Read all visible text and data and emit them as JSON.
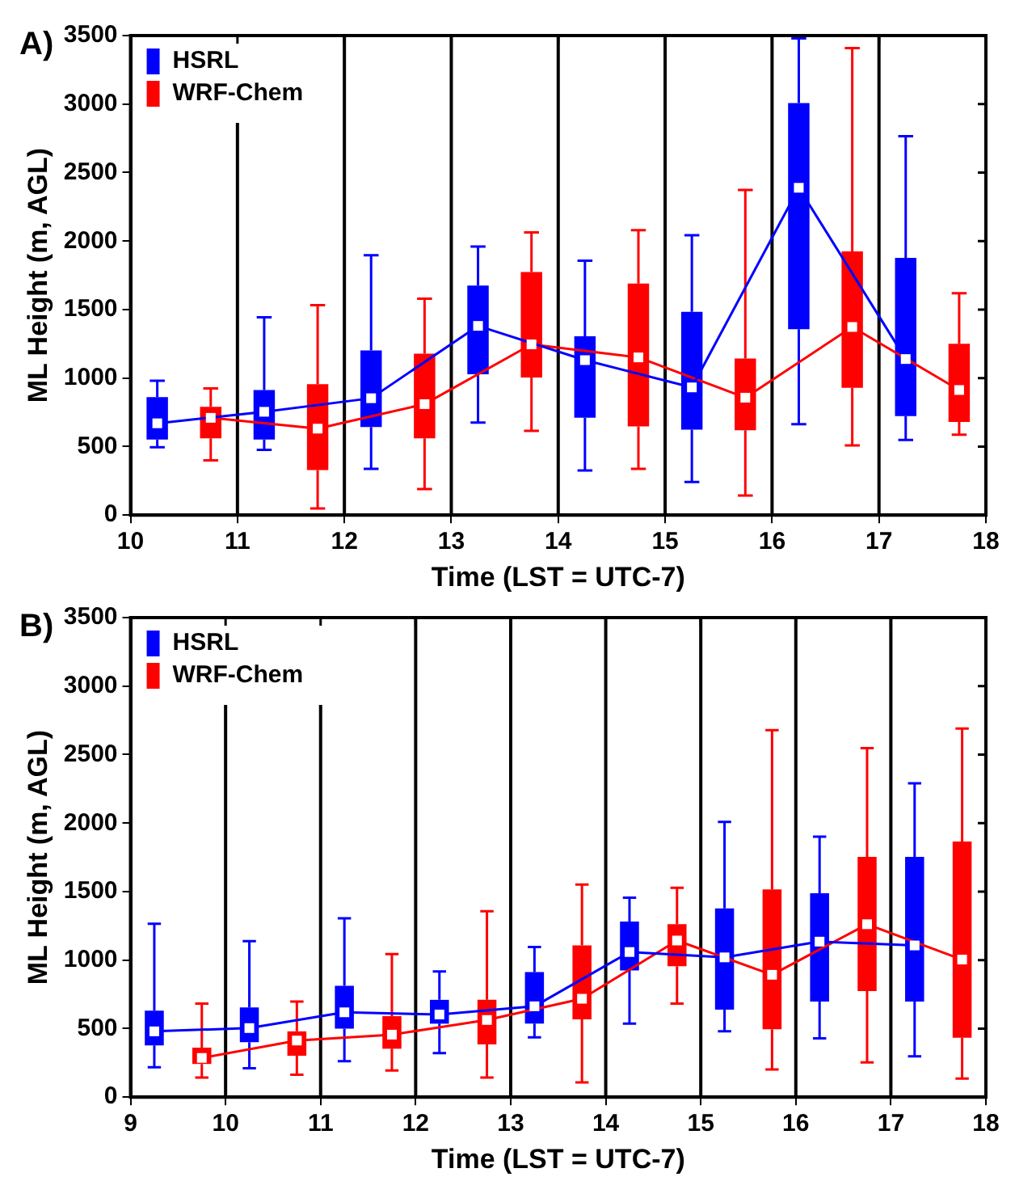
{
  "chart_data": [
    {
      "type": "box",
      "title": "A)",
      "xlabel": "Time (LST = UTC-7)",
      "ylabel": "ML Height (m, AGL)",
      "xlim": [
        10,
        18
      ],
      "xticks": [
        10,
        11,
        12,
        13,
        14,
        15,
        16,
        17,
        18
      ],
      "ylim": [
        0,
        3500
      ],
      "yticks": [
        0,
        500,
        1000,
        1500,
        2000,
        2500,
        3000,
        3500
      ],
      "grid": false,
      "legend": "top left",
      "ref_lines": [
        {
          "axis": "x",
          "value": 11,
          "color": "#000000"
        },
        {
          "axis": "x",
          "value": 12,
          "color": "#000000"
        },
        {
          "axis": "x",
          "value": 13,
          "color": "#000000"
        },
        {
          "axis": "x",
          "value": 14,
          "color": "#000000"
        },
        {
          "axis": "x",
          "value": 15,
          "color": "#000000"
        },
        {
          "axis": "x",
          "value": 16,
          "color": "#000000"
        },
        {
          "axis": "x",
          "value": 17,
          "color": "#000000"
        }
      ],
      "series": [
        {
          "name": "HSRL",
          "type": "box",
          "color": "#0000ff",
          "x": [
            10.25,
            11.25,
            12.25,
            13.25,
            14.25,
            15.25,
            16.25,
            17.25
          ],
          "boxes": [
            {
              "low": 496,
              "q1": 552,
              "median": 670,
              "q3": 861,
              "high": 980
            },
            {
              "low": 476,
              "q1": 552,
              "median": 754,
              "q3": 913,
              "high": 1444
            },
            {
              "low": 337,
              "q1": 643,
              "median": 853,
              "q3": 1202,
              "high": 1897
            },
            {
              "low": 675,
              "q1": 1028,
              "median": 1381,
              "q3": 1675,
              "high": 1960
            },
            {
              "low": 325,
              "q1": 710,
              "median": 1131,
              "q3": 1305,
              "high": 1857
            },
            {
              "low": 242,
              "q1": 623,
              "median": 932,
              "q3": 1484,
              "high": 2043
            },
            {
              "low": 663,
              "q1": 1357,
              "median": 2389,
              "q3": 3008,
              "high": 3480
            },
            {
              "low": 548,
              "q1": 722,
              "median": 1139,
              "q3": 1877,
              "high": 2766
            }
          ]
        },
        {
          "name": "WRF-Chem",
          "type": "box",
          "color": "#ff0000",
          "x": [
            10.75,
            11.75,
            12.75,
            13.75,
            14.75,
            15.75,
            16.75,
            17.75
          ],
          "boxes": [
            {
              "low": 400,
              "q1": 560,
              "median": 710,
              "q3": 790,
              "high": 925
            },
            {
              "low": 48,
              "q1": 329,
              "median": 631,
              "q3": 956,
              "high": 1532
            },
            {
              "low": 190,
              "q1": 560,
              "median": 810,
              "q3": 1178,
              "high": 1579
            },
            {
              "low": 615,
              "q1": 1004,
              "median": 1246,
              "q3": 1774,
              "high": 2063
            },
            {
              "low": 337,
              "q1": 647,
              "median": 1151,
              "q3": 1690,
              "high": 2079
            },
            {
              "low": 143,
              "q1": 619,
              "median": 857,
              "q3": 1143,
              "high": 2373
            },
            {
              "low": 508,
              "q1": 929,
              "median": 1373,
              "q3": 1924,
              "high": 3408
            },
            {
              "low": 587,
              "q1": 679,
              "median": 913,
              "q3": 1250,
              "high": 1619
            }
          ]
        },
        {
          "type": "line",
          "color": "#0000ff",
          "x": [
            10.25,
            11.25,
            12.25,
            13.25,
            14.25,
            15.25,
            16.25,
            17.25
          ],
          "values": [
            670,
            754,
            853,
            1381,
            1131,
            932,
            2389,
            1139
          ]
        },
        {
          "type": "line",
          "color": "#ff0000",
          "x": [
            10.75,
            11.75,
            12.75,
            13.75,
            14.75,
            15.75,
            16.75,
            17.75
          ],
          "values": [
            710,
            631,
            810,
            1246,
            1151,
            857,
            1373,
            913
          ]
        }
      ]
    },
    {
      "type": "box",
      "title": "B)",
      "xlabel": "Time (LST = UTC-7)",
      "ylabel": "ML Height (m, AGL)",
      "xlim": [
        9,
        18
      ],
      "xticks": [
        9,
        10,
        11,
        12,
        13,
        14,
        15,
        16,
        17,
        18
      ],
      "ylim": [
        0,
        3500
      ],
      "yticks": [
        0,
        500,
        1000,
        1500,
        2000,
        2500,
        3000,
        3500
      ],
      "grid": false,
      "legend": "top left",
      "ref_lines": [
        {
          "axis": "x",
          "value": 10,
          "color": "#000000"
        },
        {
          "axis": "x",
          "value": 11,
          "color": "#000000"
        },
        {
          "axis": "x",
          "value": 12,
          "color": "#000000"
        },
        {
          "axis": "x",
          "value": 13,
          "color": "#000000"
        },
        {
          "axis": "x",
          "value": 14,
          "color": "#000000"
        },
        {
          "axis": "x",
          "value": 15,
          "color": "#000000"
        },
        {
          "axis": "x",
          "value": 16,
          "color": "#000000"
        },
        {
          "axis": "x",
          "value": 17,
          "color": "#000000"
        }
      ],
      "series": [
        {
          "name": "HSRL",
          "type": "box",
          "color": "#0000ff",
          "x": [
            9.25,
            10.25,
            11.25,
            12.25,
            13.25,
            14.25,
            15.25,
            16.25,
            17.25
          ],
          "boxes": [
            {
              "low": 218,
              "q1": 377,
              "median": 480,
              "q3": 631,
              "high": 1266
            },
            {
              "low": 210,
              "q1": 401,
              "median": 504,
              "q3": 655,
              "high": 1139
            },
            {
              "low": 262,
              "q1": 500,
              "median": 619,
              "q3": 813,
              "high": 1305
            },
            {
              "low": 321,
              "q1": 536,
              "median": 603,
              "q3": 710,
              "high": 917
            },
            {
              "low": 436,
              "q1": 536,
              "median": 663,
              "q3": 913,
              "high": 1095
            },
            {
              "low": 536,
              "q1": 925,
              "median": 1059,
              "q3": 1282,
              "high": 1456
            },
            {
              "low": 480,
              "q1": 639,
              "median": 1020,
              "q3": 1377,
              "high": 2008
            },
            {
              "low": 429,
              "q1": 698,
              "median": 1135,
              "q3": 1488,
              "high": 1901
            },
            {
              "low": 298,
              "q1": 698,
              "median": 1107,
              "q3": 1754,
              "high": 2290
            }
          ]
        },
        {
          "name": "WRF-Chem",
          "type": "box",
          "color": "#ff0000",
          "x": [
            9.75,
            10.75,
            11.75,
            12.75,
            13.75,
            14.75,
            15.75,
            16.75,
            17.75
          ],
          "boxes": [
            {
              "low": 143,
              "q1": 242,
              "median": 286,
              "q3": 361,
              "high": 683
            },
            {
              "low": 163,
              "q1": 302,
              "median": 413,
              "q3": 480,
              "high": 698
            },
            {
              "low": 194,
              "q1": 353,
              "median": 456,
              "q3": 591,
              "high": 1044
            },
            {
              "low": 143,
              "q1": 385,
              "median": 563,
              "q3": 710,
              "high": 1357
            },
            {
              "low": 107,
              "q1": 567,
              "median": 718,
              "q3": 1107,
              "high": 1551
            },
            {
              "low": 683,
              "q1": 956,
              "median": 1143,
              "q3": 1262,
              "high": 1528
            },
            {
              "low": 202,
              "q1": 496,
              "median": 893,
              "q3": 1516,
              "high": 2678
            },
            {
              "low": 254,
              "q1": 774,
              "median": 1262,
              "q3": 1754,
              "high": 2547
            },
            {
              "low": 135,
              "q1": 433,
              "median": 1004,
              "q3": 1865,
              "high": 2690
            }
          ]
        },
        {
          "type": "line",
          "color": "#0000ff",
          "x": [
            9.25,
            10.25,
            11.25,
            12.25,
            13.25,
            14.25,
            15.25,
            16.25,
            17.25
          ],
          "values": [
            480,
            504,
            619,
            603,
            663,
            1059,
            1020,
            1135,
            1107
          ]
        },
        {
          "type": "line",
          "color": "#ff0000",
          "x": [
            9.75,
            10.75,
            11.75,
            12.75,
            13.75,
            14.75,
            15.75,
            16.75,
            17.75
          ],
          "values": [
            286,
            413,
            456,
            563,
            718,
            1143,
            893,
            1262,
            1004
          ]
        }
      ]
    }
  ]
}
